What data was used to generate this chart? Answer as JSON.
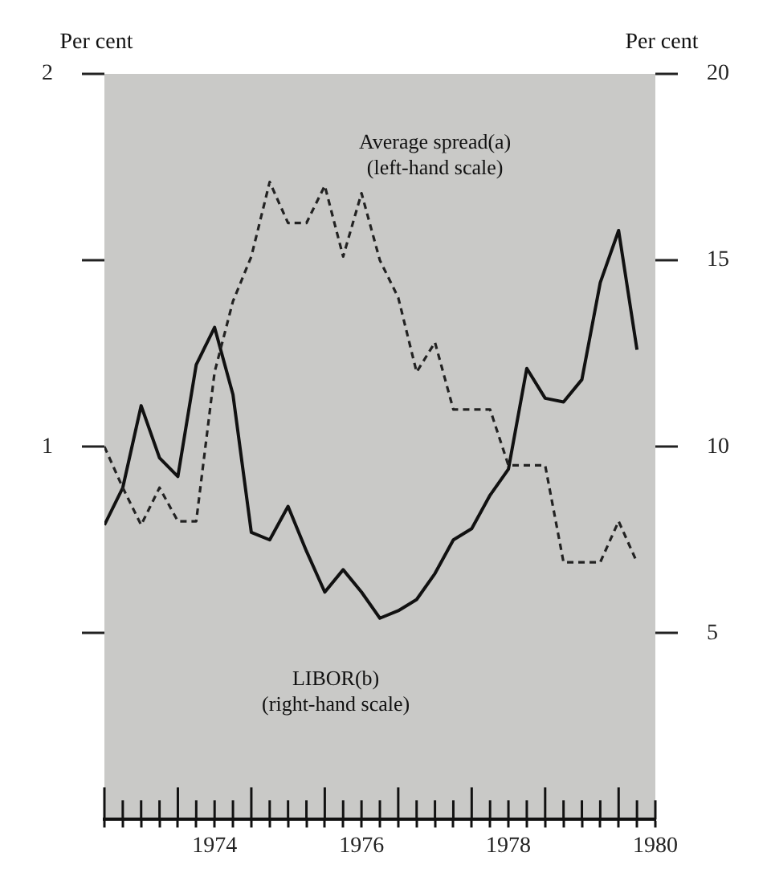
{
  "chart_data": {
    "type": "line",
    "ylabel": "Per cent",
    "y2label": "Per cent",
    "x": [
      1973.0,
      1973.25,
      1973.5,
      1973.75,
      1974.0,
      1974.25,
      1974.5,
      1974.75,
      1975.0,
      1975.25,
      1975.5,
      1975.75,
      1976.0,
      1976.25,
      1976.5,
      1976.75,
      1977.0,
      1977.25,
      1977.5,
      1977.75,
      1978.0,
      1978.25,
      1978.5,
      1978.75,
      1979.0,
      1979.25,
      1979.5,
      1979.75,
      1980.0,
      1980.25
    ],
    "series": [
      {
        "name": "Average spread(a)",
        "color": "#222222",
        "line_style": "dashed",
        "values": [
          1.0,
          0.89,
          0.79,
          0.89,
          0.8,
          0.8,
          1.2,
          1.39,
          1.51,
          1.71,
          1.6,
          1.6,
          1.7,
          1.51,
          1.68,
          1.5,
          1.4,
          1.2,
          1.28,
          1.1,
          1.1,
          1.1,
          0.95,
          0.95,
          0.95,
          0.69,
          0.69,
          0.69,
          0.8,
          0.69
        ]
      },
      {
        "name": "LIBOR(b)",
        "color": "#111111",
        "line_style": "solid",
        "axis": "y2",
        "values": [
          7.9,
          8.9,
          11.1,
          9.7,
          9.2,
          12.2,
          13.2,
          11.4,
          7.7,
          7.5,
          8.4,
          7.2,
          6.1,
          6.7,
          6.1,
          5.4,
          5.6,
          5.9,
          6.6,
          7.5,
          7.8,
          8.7,
          9.4,
          12.1,
          11.3,
          11.2,
          11.8,
          14.4,
          15.8,
          12.6
        ]
      }
    ],
    "annotations": [
      "(left-hand scale)",
      "(right-hand scale)"
    ],
    "xlim": [
      1973,
      1980.5
    ],
    "xticks": [
      {
        "value": 1973.0,
        "label": null
      },
      {
        "value": 1973.25,
        "label": null
      },
      {
        "value": 1973.5,
        "label": null
      },
      {
        "value": 1973.75,
        "label": null
      },
      {
        "value": 1974.0,
        "label": null
      },
      {
        "value": 1974.25,
        "label": null
      },
      {
        "value": 1974.5,
        "label": "1974"
      },
      {
        "value": 1974.75,
        "label": null
      },
      {
        "value": 1975.0,
        "label": null
      },
      {
        "value": 1975.25,
        "label": null
      },
      {
        "value": 1975.5,
        "label": null
      },
      {
        "value": 1975.75,
        "label": null
      },
      {
        "value": 1976.0,
        "label": null
      },
      {
        "value": 1976.25,
        "label": null
      },
      {
        "value": 1976.5,
        "label": "1976"
      },
      {
        "value": 1976.75,
        "label": null
      },
      {
        "value": 1977.0,
        "label": null
      },
      {
        "value": 1977.25,
        "label": null
      },
      {
        "value": 1977.5,
        "label": null
      },
      {
        "value": 1977.75,
        "label": null
      },
      {
        "value": 1978.0,
        "label": null
      },
      {
        "value": 1978.25,
        "label": null
      },
      {
        "value": 1978.5,
        "label": "1978"
      },
      {
        "value": 1978.75,
        "label": null
      },
      {
        "value": 1979.0,
        "label": null
      },
      {
        "value": 1979.25,
        "label": null
      },
      {
        "value": 1979.5,
        "label": null
      },
      {
        "value": 1979.75,
        "label": null
      },
      {
        "value": 1980.0,
        "label": null
      },
      {
        "value": 1980.25,
        "label": null
      },
      {
        "value": 1980.5,
        "label": "1980"
      }
    ],
    "ylim": [
      0,
      2
    ],
    "yticks": [
      {
        "value": 0.5,
        "label": null
      },
      1,
      {
        "value": 1.5,
        "label": null
      },
      2
    ],
    "y2lim": [
      0,
      20
    ],
    "y2ticks": [
      5,
      10,
      15,
      20
    ],
    "grid": false,
    "legend": false,
    "marker": "none"
  }
}
